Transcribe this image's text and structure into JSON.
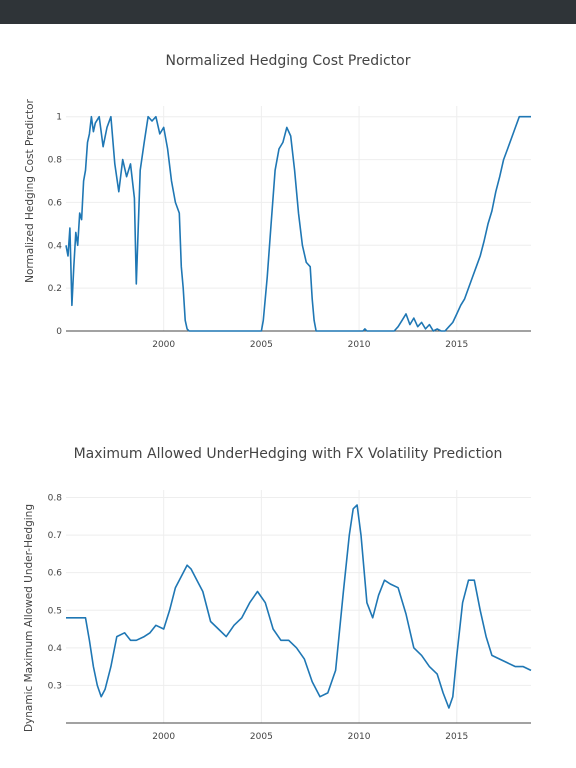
{
  "chart_data": [
    {
      "type": "line",
      "title": "Normalized Hedging Cost Predictor",
      "xlabel": "",
      "ylabel": "Normalized Hedging Cost Predictor",
      "xlim": [
        1995.0,
        2018.8
      ],
      "ylim": [
        0,
        1.05
      ],
      "xticks": [
        2000,
        2005,
        2010,
        2015
      ],
      "yticks": [
        0,
        0.2,
        0.4,
        0.6,
        0.8,
        1
      ],
      "xtick_labels": [
        "2000",
        "2005",
        "2010",
        "2015"
      ],
      "ytick_labels": [
        "0",
        "0.2",
        "0.4",
        "0.6",
        "0.8",
        "1"
      ],
      "grid": true,
      "color": "#1f77b4",
      "series": [
        {
          "x": [
            1995.0,
            1995.1,
            1995.2,
            1995.3,
            1995.4,
            1995.5,
            1995.6,
            1995.7,
            1995.8,
            1995.9,
            1996.0,
            1996.1,
            1996.2,
            1996.3,
            1996.4,
            1996.5,
            1996.7,
            1996.9,
            1997.1,
            1997.3,
            1997.5,
            1997.7,
            1997.9,
            1998.1,
            1998.3,
            1998.5,
            1998.6,
            1998.8,
            1999.0,
            1999.2,
            1999.4,
            1999.6,
            1999.8,
            2000.0,
            2000.2,
            2000.4,
            2000.6,
            2000.8,
            2000.9,
            2001.0,
            2001.1,
            2001.2,
            2001.3,
            2005.0,
            2005.1,
            2005.3,
            2005.5,
            2005.7,
            2005.9,
            2006.1,
            2006.3,
            2006.5,
            2006.7,
            2006.9,
            2007.1,
            2007.3,
            2007.5,
            2007.6,
            2007.7,
            2007.8,
            2010.2,
            2010.3,
            2010.4,
            2010.5,
            2011.5,
            2011.8,
            2012.0,
            2012.2,
            2012.4,
            2012.6,
            2012.8,
            2013.0,
            2013.2,
            2013.4,
            2013.6,
            2013.8,
            2014.0,
            2014.2,
            2014.4,
            2014.6,
            2014.8,
            2015.0,
            2015.2,
            2015.4,
            2015.6,
            2015.8,
            2016.0,
            2016.2,
            2016.4,
            2016.6,
            2016.8,
            2017.0,
            2017.2,
            2017.4,
            2017.6,
            2017.8,
            2018.0,
            2018.2,
            2018.4,
            2018.8
          ],
          "y": [
            0.4,
            0.35,
            0.48,
            0.12,
            0.3,
            0.46,
            0.4,
            0.55,
            0.52,
            0.7,
            0.75,
            0.88,
            0.92,
            1.0,
            0.93,
            0.97,
            1.0,
            0.86,
            0.95,
            1.0,
            0.78,
            0.65,
            0.8,
            0.72,
            0.78,
            0.62,
            0.22,
            0.75,
            0.88,
            1.0,
            0.98,
            1.0,
            0.92,
            0.95,
            0.85,
            0.7,
            0.6,
            0.55,
            0.3,
            0.2,
            0.05,
            0.01,
            0.0,
            0.0,
            0.05,
            0.25,
            0.5,
            0.75,
            0.85,
            0.88,
            0.95,
            0.91,
            0.75,
            0.55,
            0.4,
            0.32,
            0.3,
            0.15,
            0.05,
            0.0,
            0.0,
            0.01,
            0.0,
            0.0,
            0.0,
            0.0,
            0.02,
            0.05,
            0.08,
            0.03,
            0.06,
            0.02,
            0.04,
            0.01,
            0.03,
            0.0,
            0.01,
            0.0,
            0.0,
            0.02,
            0.04,
            0.08,
            0.12,
            0.15,
            0.2,
            0.25,
            0.3,
            0.35,
            0.42,
            0.5,
            0.56,
            0.65,
            0.72,
            0.8,
            0.85,
            0.9,
            0.95,
            1.0,
            1.0,
            1.0
          ]
        }
      ]
    },
    {
      "type": "line",
      "title": "Maximum Allowed UnderHedging with FX Volatility Prediction",
      "xlabel": "",
      "ylabel": "Dynamic Maximum Allowed Under-Hedging",
      "xlim": [
        1995.0,
        2018.8
      ],
      "ylim": [
        0.2,
        0.82
      ],
      "xticks": [
        2000,
        2005,
        2010,
        2015
      ],
      "yticks": [
        0.3,
        0.4,
        0.5,
        0.6,
        0.7,
        0.8
      ],
      "xtick_labels": [
        "2000",
        "2005",
        "2010",
        "2015"
      ],
      "ytick_labels": [
        "0.3",
        "0.4",
        "0.5",
        "0.6",
        "0.7",
        "0.8"
      ],
      "grid": true,
      "color": "#1f77b4",
      "series": [
        {
          "x": [
            1995.0,
            1995.5,
            1996.0,
            1996.2,
            1996.4,
            1996.6,
            1996.8,
            1997.0,
            1997.3,
            1997.6,
            1998.0,
            1998.3,
            1998.6,
            1999.0,
            1999.3,
            1999.6,
            2000.0,
            2000.3,
            2000.6,
            2001.0,
            2001.2,
            2001.4,
            2001.7,
            2002.0,
            2002.4,
            2002.8,
            2003.2,
            2003.6,
            2004.0,
            2004.4,
            2004.8,
            2005.2,
            2005.6,
            2006.0,
            2006.4,
            2006.8,
            2007.2,
            2007.6,
            2008.0,
            2008.4,
            2008.8,
            2009.2,
            2009.5,
            2009.7,
            2009.9,
            2010.1,
            2010.4,
            2010.7,
            2011.0,
            2011.3,
            2011.6,
            2012.0,
            2012.4,
            2012.8,
            2013.2,
            2013.6,
            2014.0,
            2014.3,
            2014.6,
            2014.8,
            2015.0,
            2015.3,
            2015.6,
            2015.9,
            2016.2,
            2016.5,
            2016.8,
            2017.2,
            2017.6,
            2018.0,
            2018.4,
            2018.8
          ],
          "y": [
            0.48,
            0.48,
            0.48,
            0.42,
            0.35,
            0.3,
            0.27,
            0.29,
            0.35,
            0.43,
            0.44,
            0.42,
            0.42,
            0.43,
            0.44,
            0.46,
            0.45,
            0.5,
            0.56,
            0.6,
            0.62,
            0.61,
            0.58,
            0.55,
            0.47,
            0.45,
            0.43,
            0.46,
            0.48,
            0.52,
            0.55,
            0.52,
            0.45,
            0.42,
            0.42,
            0.4,
            0.37,
            0.31,
            0.27,
            0.28,
            0.34,
            0.55,
            0.7,
            0.77,
            0.78,
            0.7,
            0.52,
            0.48,
            0.54,
            0.58,
            0.57,
            0.56,
            0.49,
            0.4,
            0.38,
            0.35,
            0.33,
            0.28,
            0.24,
            0.27,
            0.38,
            0.52,
            0.58,
            0.58,
            0.5,
            0.43,
            0.38,
            0.37,
            0.36,
            0.35,
            0.35,
            0.34
          ]
        }
      ]
    }
  ]
}
